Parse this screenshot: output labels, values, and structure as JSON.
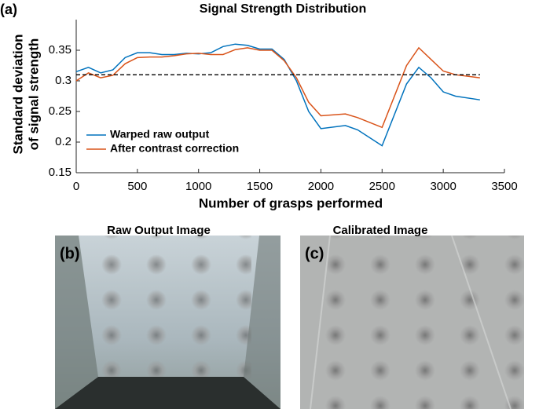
{
  "chart_data": {
    "type": "line",
    "panel_label": "(a)",
    "title": "Signal Strength Distribution",
    "y_label_lines": [
      "Standard deviation",
      "of signal strength"
    ],
    "x_label": "Number of grasps performed",
    "x": [
      0,
      100,
      200,
      300,
      400,
      500,
      600,
      700,
      800,
      900,
      1000,
      1100,
      1200,
      1300,
      1400,
      1500,
      1600,
      1700,
      1800,
      1900,
      2000,
      2200,
      2300,
      2500,
      2700,
      2800,
      2900,
      3000,
      3100,
      3300
    ],
    "series": [
      {
        "name": "Warped raw output",
        "color": "#0072BD",
        "values": [
          0.315,
          0.322,
          0.313,
          0.318,
          0.338,
          0.346,
          0.346,
          0.343,
          0.343,
          0.345,
          0.344,
          0.346,
          0.356,
          0.36,
          0.358,
          0.352,
          0.352,
          0.335,
          0.3,
          0.25,
          0.222,
          0.227,
          0.22,
          0.194,
          0.295,
          0.322,
          0.305,
          0.282,
          0.275,
          0.269
        ]
      },
      {
        "name": "After contrast correction",
        "color": "#D95319",
        "values": [
          0.3,
          0.313,
          0.305,
          0.309,
          0.328,
          0.338,
          0.339,
          0.339,
          0.341,
          0.344,
          0.345,
          0.343,
          0.343,
          0.351,
          0.354,
          0.35,
          0.35,
          0.333,
          0.305,
          0.265,
          0.243,
          0.246,
          0.24,
          0.224,
          0.325,
          0.354,
          0.335,
          0.316,
          0.31,
          0.305
        ]
      }
    ],
    "reference_line": 0.31,
    "xlim": [
      0,
      3500
    ],
    "xticks": [
      0,
      500,
      1000,
      1500,
      2000,
      2500,
      3000,
      3500
    ],
    "ylim": [
      0.15,
      0.4
    ],
    "yticks": [
      0.15,
      0.2,
      0.25,
      0.3,
      0.35
    ],
    "legend": "lower-left"
  },
  "panels": [
    {
      "label": "(b)",
      "title": "Raw Output Image"
    },
    {
      "label": "(c)",
      "title": "Calibrated Image"
    }
  ]
}
